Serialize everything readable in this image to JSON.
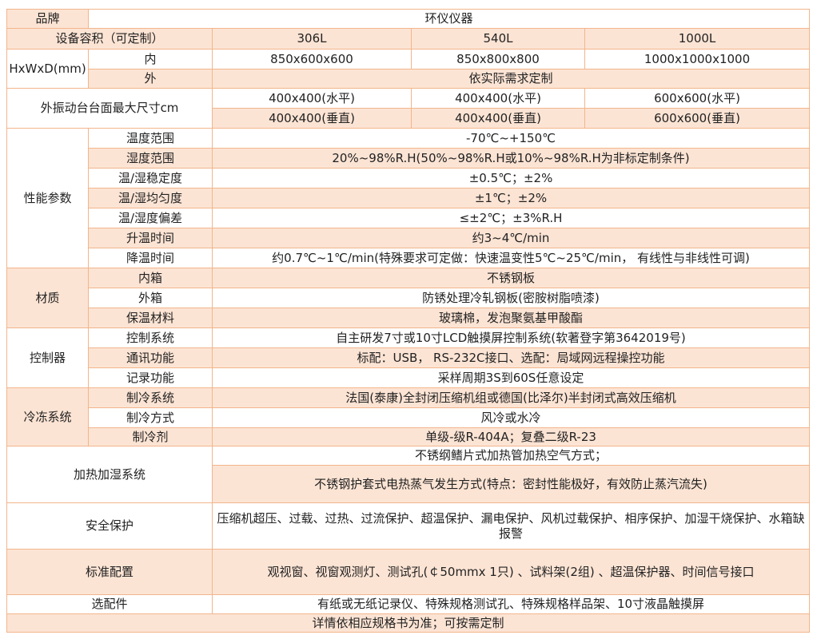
{
  "colors": {
    "border": "#f2b58c",
    "fill": "#fce4d4"
  },
  "brand": {
    "label": "品牌",
    "value": "环仪仪器"
  },
  "capacity": {
    "label": "设备容积（可定制）",
    "values": [
      "306L",
      "540L",
      "1000L"
    ]
  },
  "dimensions": {
    "label": "HxWxD(mm)",
    "inner_label": "内",
    "inner": [
      "850x600x600",
      "850x800x800",
      "1000x1000x1000"
    ],
    "outer_label": "外",
    "outer": "依实际需求定制"
  },
  "vibration": {
    "label": "外振动台台面最大尺寸cm",
    "horizontal": [
      "400x400(水平)",
      "400x400(水平)",
      "600x600(水平)"
    ],
    "vertical": [
      "400x400(垂直)",
      "400x400(垂直)",
      "600x600(垂直)"
    ]
  },
  "performance": {
    "label": "性能参数",
    "rows": [
      {
        "label": "温度范围",
        "value": "-70℃~+150℃"
      },
      {
        "label": "湿度范围",
        "value": "20%~98%R.H(50%~98%R.H或10%~98%R.H为非标定制条件)"
      },
      {
        "label": "温/湿稳定度",
        "value": "±0.5℃；±2%"
      },
      {
        "label": "温/湿均匀度",
        "value": "±1℃；±2%"
      },
      {
        "label": "温/湿度偏差",
        "value": "≤±2℃；±3%R.H"
      },
      {
        "label": "升温时间",
        "value": "约3~4℃/min"
      },
      {
        "label": "降温时间",
        "value": "约0.7℃~1℃/min(特殊要求可定做：快速温变性5℃~25℃/min， 有线性与非线性可调)"
      }
    ]
  },
  "material": {
    "label": "材质",
    "rows": [
      {
        "label": "内箱",
        "value": "不锈钢板"
      },
      {
        "label": "外箱",
        "value": "防锈处理冷轧钢板(密胺树脂喷漆)"
      },
      {
        "label": "保温材料",
        "value": "玻璃棉，发泡聚氨基甲酸酯"
      }
    ]
  },
  "controller": {
    "label": "控制器",
    "rows": [
      {
        "label": "控制系统",
        "value": "自主研发7寸或10寸LCD触摸屏控制系统(软著登字第3642019号)"
      },
      {
        "label": "通讯功能",
        "value": "标配：USB， RS-232C接口、选配：局域网远程操控功能"
      },
      {
        "label": "记录功能",
        "value": "采样周期3S到60S任意设定"
      }
    ]
  },
  "refrigeration": {
    "label": "冷冻系统",
    "rows": [
      {
        "label": "制冷系统",
        "value": "法国(泰康)全封闭压缩机组或德国(比泽尔)半封闭式高效压缩机"
      },
      {
        "label": "制冷方式",
        "value": "风冷或水冷"
      },
      {
        "label": "制冷剂",
        "value": "单级-级R-404A；复叠二级R-23"
      }
    ]
  },
  "heating": {
    "label": "加热加湿系统",
    "values": [
      "不锈纲鳍片式加热管加热空气方式；",
      "不锈钢护套式电热蒸气发生方式(特点：密封性能极好，有效防止蒸汽流失)"
    ]
  },
  "safety": {
    "label": "安全保护",
    "value": "压缩机超压、过载、过热、过流保护、超温保护、漏电保护、风机过载保护、相序保护、加湿干烧保护、水箱缺报警"
  },
  "standard": {
    "label": "标准配置",
    "value": "观视窗、视窗观测灯、测试孔(￠50mmx 1只) 、试料架(2组) 、超温保护器、时间信号接口"
  },
  "options": {
    "label": "选配件",
    "value": "有纸或无纸记录仪、特殊规格测试孔、特殊规格样品架、10寸液晶触摸屏"
  },
  "footer": "详情依相应规格书为准；可按需定制"
}
